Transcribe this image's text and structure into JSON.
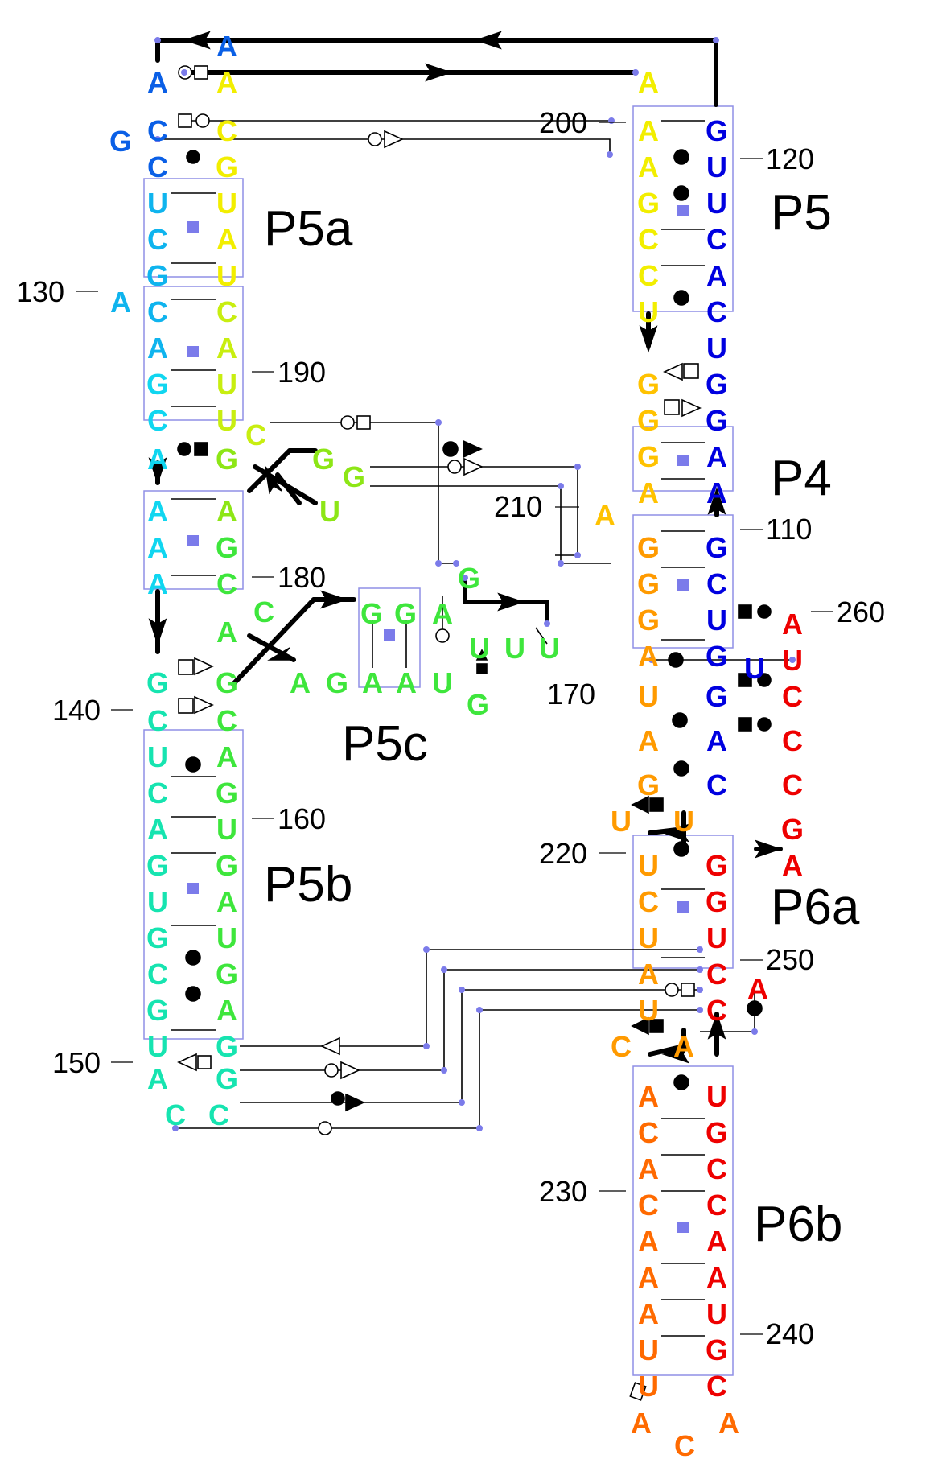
{
  "diagram": {
    "helix_labels": [
      "P5a",
      "P5",
      "P4",
      "P5c",
      "P5b",
      "P6a",
      "P6b"
    ],
    "position_labels": [
      "200",
      "120",
      "130",
      "190",
      "210",
      "110",
      "180",
      "260",
      "170",
      "140",
      "160",
      "220",
      "250",
      "150",
      "230",
      "240"
    ],
    "colors": {
      "blue": "#0000e0",
      "azure": "#0a5fe6",
      "sky": "#0fb4ee",
      "cyan": "#10d6f0",
      "teal": "#16e4b0",
      "green": "#3ee63c",
      "lime": "#8de616",
      "yellowgreen": "#c8ee10",
      "yellow": "#f2ee00",
      "amber": "#ffc200",
      "orange": "#ff9a00",
      "darkorange": "#ff6a00",
      "red": "#ee0000",
      "box": "#8f8fe6"
    },
    "nucleotides": [
      "A",
      "A",
      "A",
      "C",
      "G",
      "C",
      "C",
      "G",
      "U",
      "U",
      "C",
      "A",
      "G",
      "U",
      "A",
      "C",
      "C",
      "A",
      "A",
      "G",
      "U",
      "C",
      "U",
      "C",
      "A",
      "G",
      "G",
      "G",
      "A",
      "A",
      "U",
      "A",
      "G",
      "A",
      "C",
      "C",
      "A",
      "G",
      "G",
      "A",
      "G",
      "U",
      "U",
      "U",
      "G",
      "G",
      "A",
      "G",
      "A",
      "A",
      "U",
      "G",
      "C",
      "C",
      "U",
      "A",
      "C",
      "G",
      "A",
      "U",
      "G",
      "G",
      "U",
      "A",
      "G",
      "U",
      "C",
      "G",
      "G",
      "A",
      "U",
      "G",
      "A",
      "G",
      "C",
      "C",
      "A",
      "G",
      "A",
      "A",
      "U",
      "G",
      "U",
      "C",
      "C",
      "C",
      "A",
      "U",
      "C",
      "U",
      "G",
      "G",
      "G",
      "G",
      "G",
      "A",
      "A",
      "A",
      "A",
      "G",
      "G",
      "G",
      "C",
      "G",
      "U",
      "A",
      "A",
      "G",
      "U",
      "U",
      "U",
      "G",
      "C",
      "A",
      "A",
      "C",
      "G",
      "C",
      "C",
      "U",
      "U",
      "G",
      "U",
      "G",
      "A",
      "C",
      "G",
      "U",
      "U",
      "A",
      "C",
      "A",
      "U",
      "C",
      "C",
      "A",
      "A",
      "U",
      "C",
      "G",
      "A",
      "C",
      "C",
      "C",
      "A",
      "A",
      "A",
      "A",
      "A",
      "U",
      "U",
      "G",
      "U",
      "C",
      "A",
      "A",
      "C",
      "A",
      "G",
      "A",
      "G",
      "G",
      "C",
      "U",
      "U",
      "G",
      "A",
      "U",
      "A",
      "G",
      "U",
      "U",
      "C",
      "A"
    ]
  }
}
